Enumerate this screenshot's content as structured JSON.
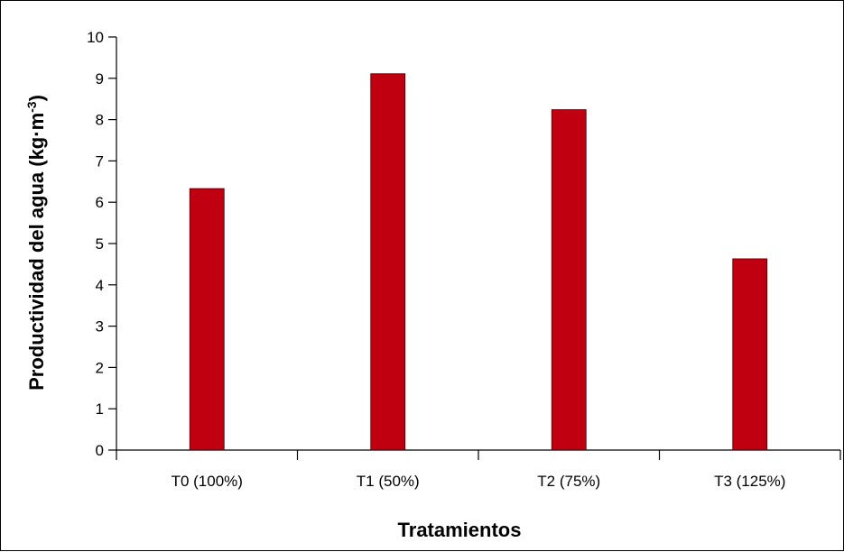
{
  "chart_data": {
    "type": "bar",
    "categories": [
      "T0 (100%)",
      "T1 (50%)",
      "T2 (75%)",
      "T3 (125%)"
    ],
    "values": [
      6.33,
      9.11,
      8.24,
      4.63
    ],
    "xlabel": "Tratamientos",
    "ylabel": "Productividad del agua (kg·m",
    "ylabel_superscript": "-3",
    "ylabel_suffix": ")",
    "ylim": [
      0,
      10
    ],
    "yticks": [
      "0",
      "1",
      "2",
      "3",
      "4",
      "5",
      "6",
      "7",
      "8",
      "9",
      "10"
    ],
    "grid": false,
    "bar_color": "#C00010"
  }
}
